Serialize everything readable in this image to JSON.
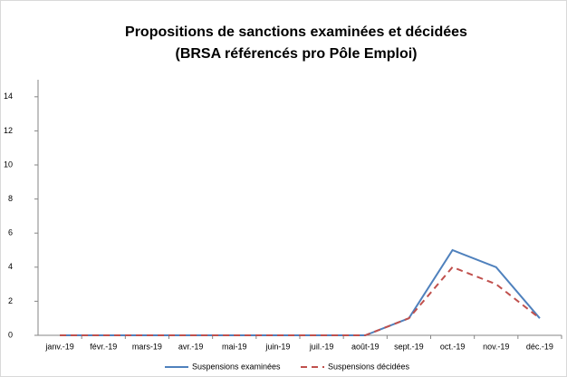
{
  "chart_data": {
    "type": "line",
    "title": "Propositions de sanctions examinées et décidées",
    "subtitle": "(BRSA référencés pro Pôle Emploi)",
    "categories": [
      "janv.-19",
      "févr.-19",
      "mars-19",
      "avr.-19",
      "mai-19",
      "juin-19",
      "juil.-19",
      "août-19",
      "sept.-19",
      "oct.-19",
      "nov.-19",
      "déc.-19"
    ],
    "series": [
      {
        "name": "Suspensions examinées",
        "color": "#4f81bd",
        "dashed": false,
        "values": [
          0,
          0,
          0,
          0,
          0,
          0,
          0,
          0,
          1,
          5,
          4,
          1
        ]
      },
      {
        "name": "Suspensions décidées",
        "color": "#c0504d",
        "dashed": true,
        "values": [
          0,
          0,
          0,
          0,
          0,
          0,
          0,
          0,
          1,
          4,
          3,
          1
        ]
      }
    ],
    "ylim": [
      0,
      15
    ],
    "yticks": [
      0,
      2,
      4,
      6,
      8,
      10,
      12,
      14
    ],
    "grid": false,
    "legend": "bottom"
  }
}
